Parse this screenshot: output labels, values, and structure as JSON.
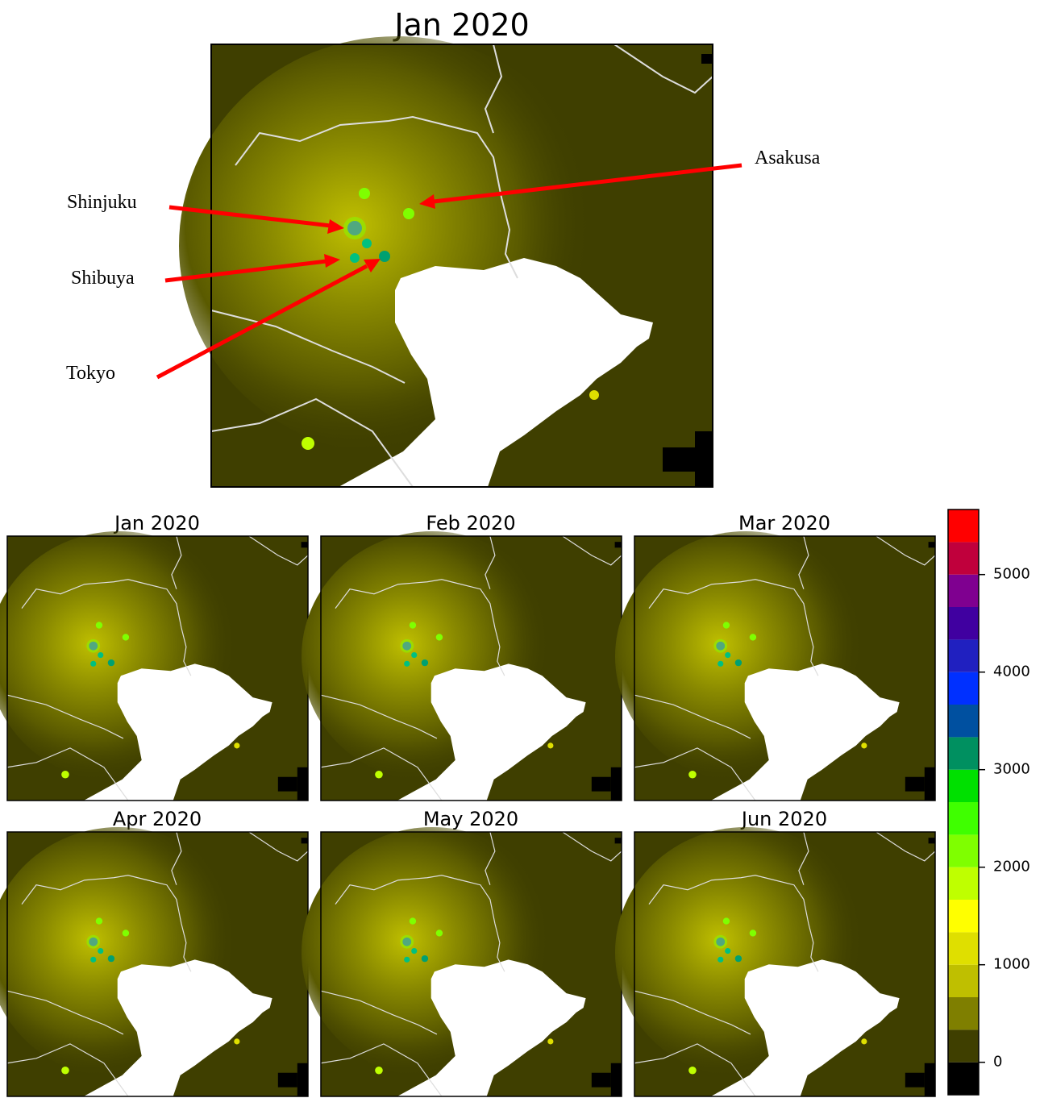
{
  "main_map": {
    "title": "Jan 2020",
    "annotations": [
      {
        "label": "Shinjuku"
      },
      {
        "label": "Shibuya"
      },
      {
        "label": "Tokyo"
      },
      {
        "label": "Asakusa"
      }
    ]
  },
  "panels": [
    {
      "title": "Jan 2020"
    },
    {
      "title": "Feb 2020"
    },
    {
      "title": "Mar 2020"
    },
    {
      "title": "Apr 2020"
    },
    {
      "title": "May 2020"
    },
    {
      "title": "Jun 2020"
    }
  ],
  "colorbar": {
    "type": "colorbar",
    "bins": [
      -333,
      0,
      333,
      667,
      1000,
      1333,
      1667,
      2000,
      2333,
      2667,
      3000,
      3333,
      3667,
      4000,
      4333,
      4667,
      5000,
      5333,
      5667
    ],
    "colors": [
      "#000000",
      "#3f3f00",
      "#7f7f00",
      "#bfbf00",
      "#dfdf00",
      "#ffff00",
      "#bfff00",
      "#7fff00",
      "#3fff00",
      "#00e000",
      "#009060",
      "#0050a0",
      "#0030ff",
      "#2020c0",
      "#4000a0",
      "#7f0090",
      "#c0003c",
      "#ff0000"
    ],
    "ylim": [
      -333,
      5667
    ],
    "yticks": [
      0,
      1000,
      2000,
      3000,
      4000,
      5000
    ]
  }
}
